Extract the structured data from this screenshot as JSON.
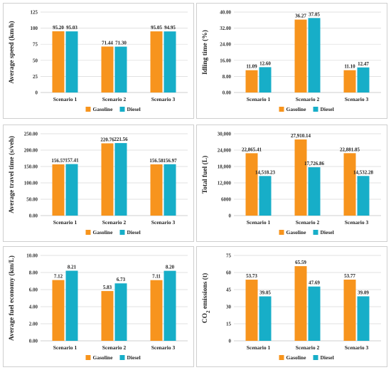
{
  "colors": {
    "gasoline": "#f7941d",
    "diesel": "#17aec8"
  },
  "chart_data": [
    {
      "type": "bar",
      "ylabel": "Average speed (km/h)",
      "ylim": [
        0,
        125
      ],
      "yticks": [
        "0",
        "25",
        "50",
        "75",
        "100",
        "125"
      ],
      "categories": [
        "Scenario 1",
        "Scenario 2",
        "Scenario 3"
      ],
      "series": [
        {
          "name": "Gasoline",
          "values": [
            95.2,
            71.44,
            95.05
          ],
          "labels": [
            "95.20",
            "71.44",
            "95.05"
          ]
        },
        {
          "name": "Diesel",
          "values": [
            95.03,
            71.3,
            94.95
          ],
          "labels": [
            "95.03",
            "71.30",
            "94.95"
          ]
        }
      ],
      "grid": true,
      "legend": "bottom"
    },
    {
      "type": "bar",
      "ylabel": "Idling time (%)",
      "ylim": [
        0,
        40
      ],
      "yticks": [
        "0.00",
        "8.00",
        "16.00",
        "24.00",
        "32.00",
        "40.00"
      ],
      "categories": [
        "Scenario 1",
        "Scenario 2",
        "Scenario 3"
      ],
      "series": [
        {
          "name": "Gasoline",
          "values": [
            11.09,
            36.27,
            11.1
          ],
          "labels": [
            "11.09",
            "36.27",
            "11.10"
          ]
        },
        {
          "name": "Diesel",
          "values": [
            12.6,
            37.05,
            12.47
          ],
          "labels": [
            "12.60",
            "37.05",
            "12.47"
          ]
        }
      ],
      "grid": true,
      "legend": "bottom"
    },
    {
      "type": "bar",
      "ylabel": "Average travel time (s/veh)",
      "ylim": [
        0,
        250
      ],
      "yticks": [
        "0.00",
        "50.00",
        "100.00",
        "150.00",
        "200.00",
        "250.00"
      ],
      "categories": [
        "Scenario 1",
        "Scenario 2",
        "Scenario 3"
      ],
      "series": [
        {
          "name": "Gasoline",
          "values": [
            156.57,
            220.76,
            156.58
          ],
          "labels": [
            "156.57",
            "220.76",
            "156.58"
          ]
        },
        {
          "name": "Diesel",
          "values": [
            157.41,
            221.56,
            156.97
          ],
          "labels": [
            "157.41",
            "221.56",
            "156.97"
          ]
        }
      ],
      "grid": true,
      "legend": "bottom"
    },
    {
      "type": "bar",
      "ylabel": "Total fuel (L)",
      "ylim": [
        0,
        30000
      ],
      "yticks": [
        "0",
        "6000",
        "12,000",
        "18,000",
        "24,000",
        "30,000"
      ],
      "categories": [
        "Scenario 1",
        "Scenario 2",
        "Scenario 3"
      ],
      "series": [
        {
          "name": "Gasoline",
          "values": [
            22865.41,
            27910.14,
            22881.85
          ],
          "labels": [
            "22,865.41",
            "27,910.14",
            "22,881.85"
          ]
        },
        {
          "name": "Diesel",
          "values": [
            14518.23,
            17726.86,
            14532.28
          ],
          "labels": [
            "14,518.23",
            "17,726.86",
            "14,532.28"
          ]
        }
      ],
      "grid": true,
      "legend": "bottom"
    },
    {
      "type": "bar",
      "ylabel": "Average fuel economy (km/L)",
      "ylim": [
        0,
        10
      ],
      "yticks": [
        "0.00",
        "2.00",
        "4.00",
        "6.00",
        "8.00",
        "10.00"
      ],
      "categories": [
        "Scenario 1",
        "Scenario 2",
        "Scenario 3"
      ],
      "series": [
        {
          "name": "Gasoline",
          "values": [
            7.12,
            5.83,
            7.11
          ],
          "labels": [
            "7.12",
            "5.83",
            "7.11"
          ]
        },
        {
          "name": "Diesel",
          "values": [
            8.21,
            6.73,
            8.2
          ],
          "labels": [
            "8.21",
            "6.73",
            "8.20"
          ]
        }
      ],
      "grid": true,
      "legend": "bottom"
    },
    {
      "type": "bar",
      "ylabel": "CO2 emissions (t)",
      "ylim": [
        0,
        75
      ],
      "yticks": [
        "0",
        "15",
        "30",
        "45",
        "60",
        "75"
      ],
      "categories": [
        "Scenario 1",
        "Scenario 2",
        "Scenario 3"
      ],
      "series": [
        {
          "name": "Gasoline",
          "values": [
            53.73,
            65.59,
            53.77
          ],
          "labels": [
            "53.73",
            "65.59",
            "53.77"
          ]
        },
        {
          "name": "Diesel",
          "values": [
            39.05,
            47.69,
            39.09
          ],
          "labels": [
            "39.05",
            "47.69",
            "39.09"
          ]
        }
      ],
      "grid": true,
      "legend": "bottom"
    }
  ]
}
